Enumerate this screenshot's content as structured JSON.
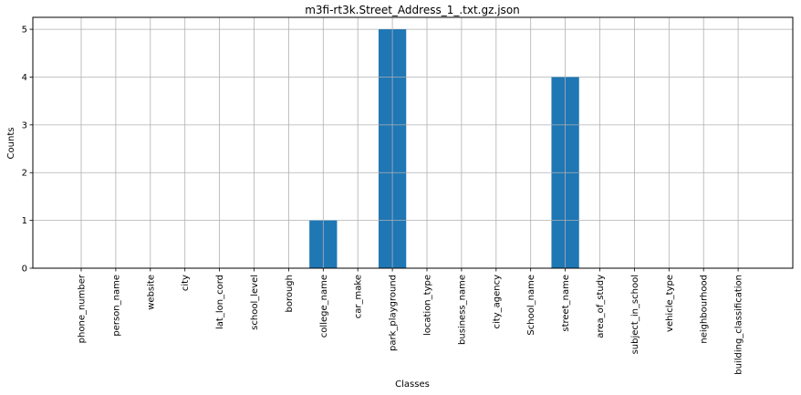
{
  "chart_data": {
    "type": "bar",
    "title": "m3fi-rt3k.Street_Address_1_.txt.gz.json",
    "xlabel": "Classes",
    "ylabel": "Counts",
    "categories": [
      "phone_number",
      "person_name",
      "website",
      "city",
      "lat_lon_cord",
      "school_level",
      "borough",
      "college_name",
      "car_make",
      "park_playground",
      "location_type",
      "business_name",
      "city_agency",
      "School_name",
      "street_name",
      "area_of_study",
      "subject_in_school",
      "vehicle_type",
      "neighbourhood",
      "building_classification"
    ],
    "values": [
      0,
      0,
      0,
      0,
      0,
      0,
      0,
      1,
      0,
      5,
      0,
      0,
      0,
      0,
      4,
      0,
      0,
      0,
      0,
      0
    ],
    "ylim": [
      0,
      5.25
    ],
    "yticks": [
      "0",
      "1",
      "2",
      "3",
      "4",
      "5"
    ],
    "grid": true,
    "bar_color": "#1f77b4",
    "grid_color": "#b0b0b0"
  }
}
